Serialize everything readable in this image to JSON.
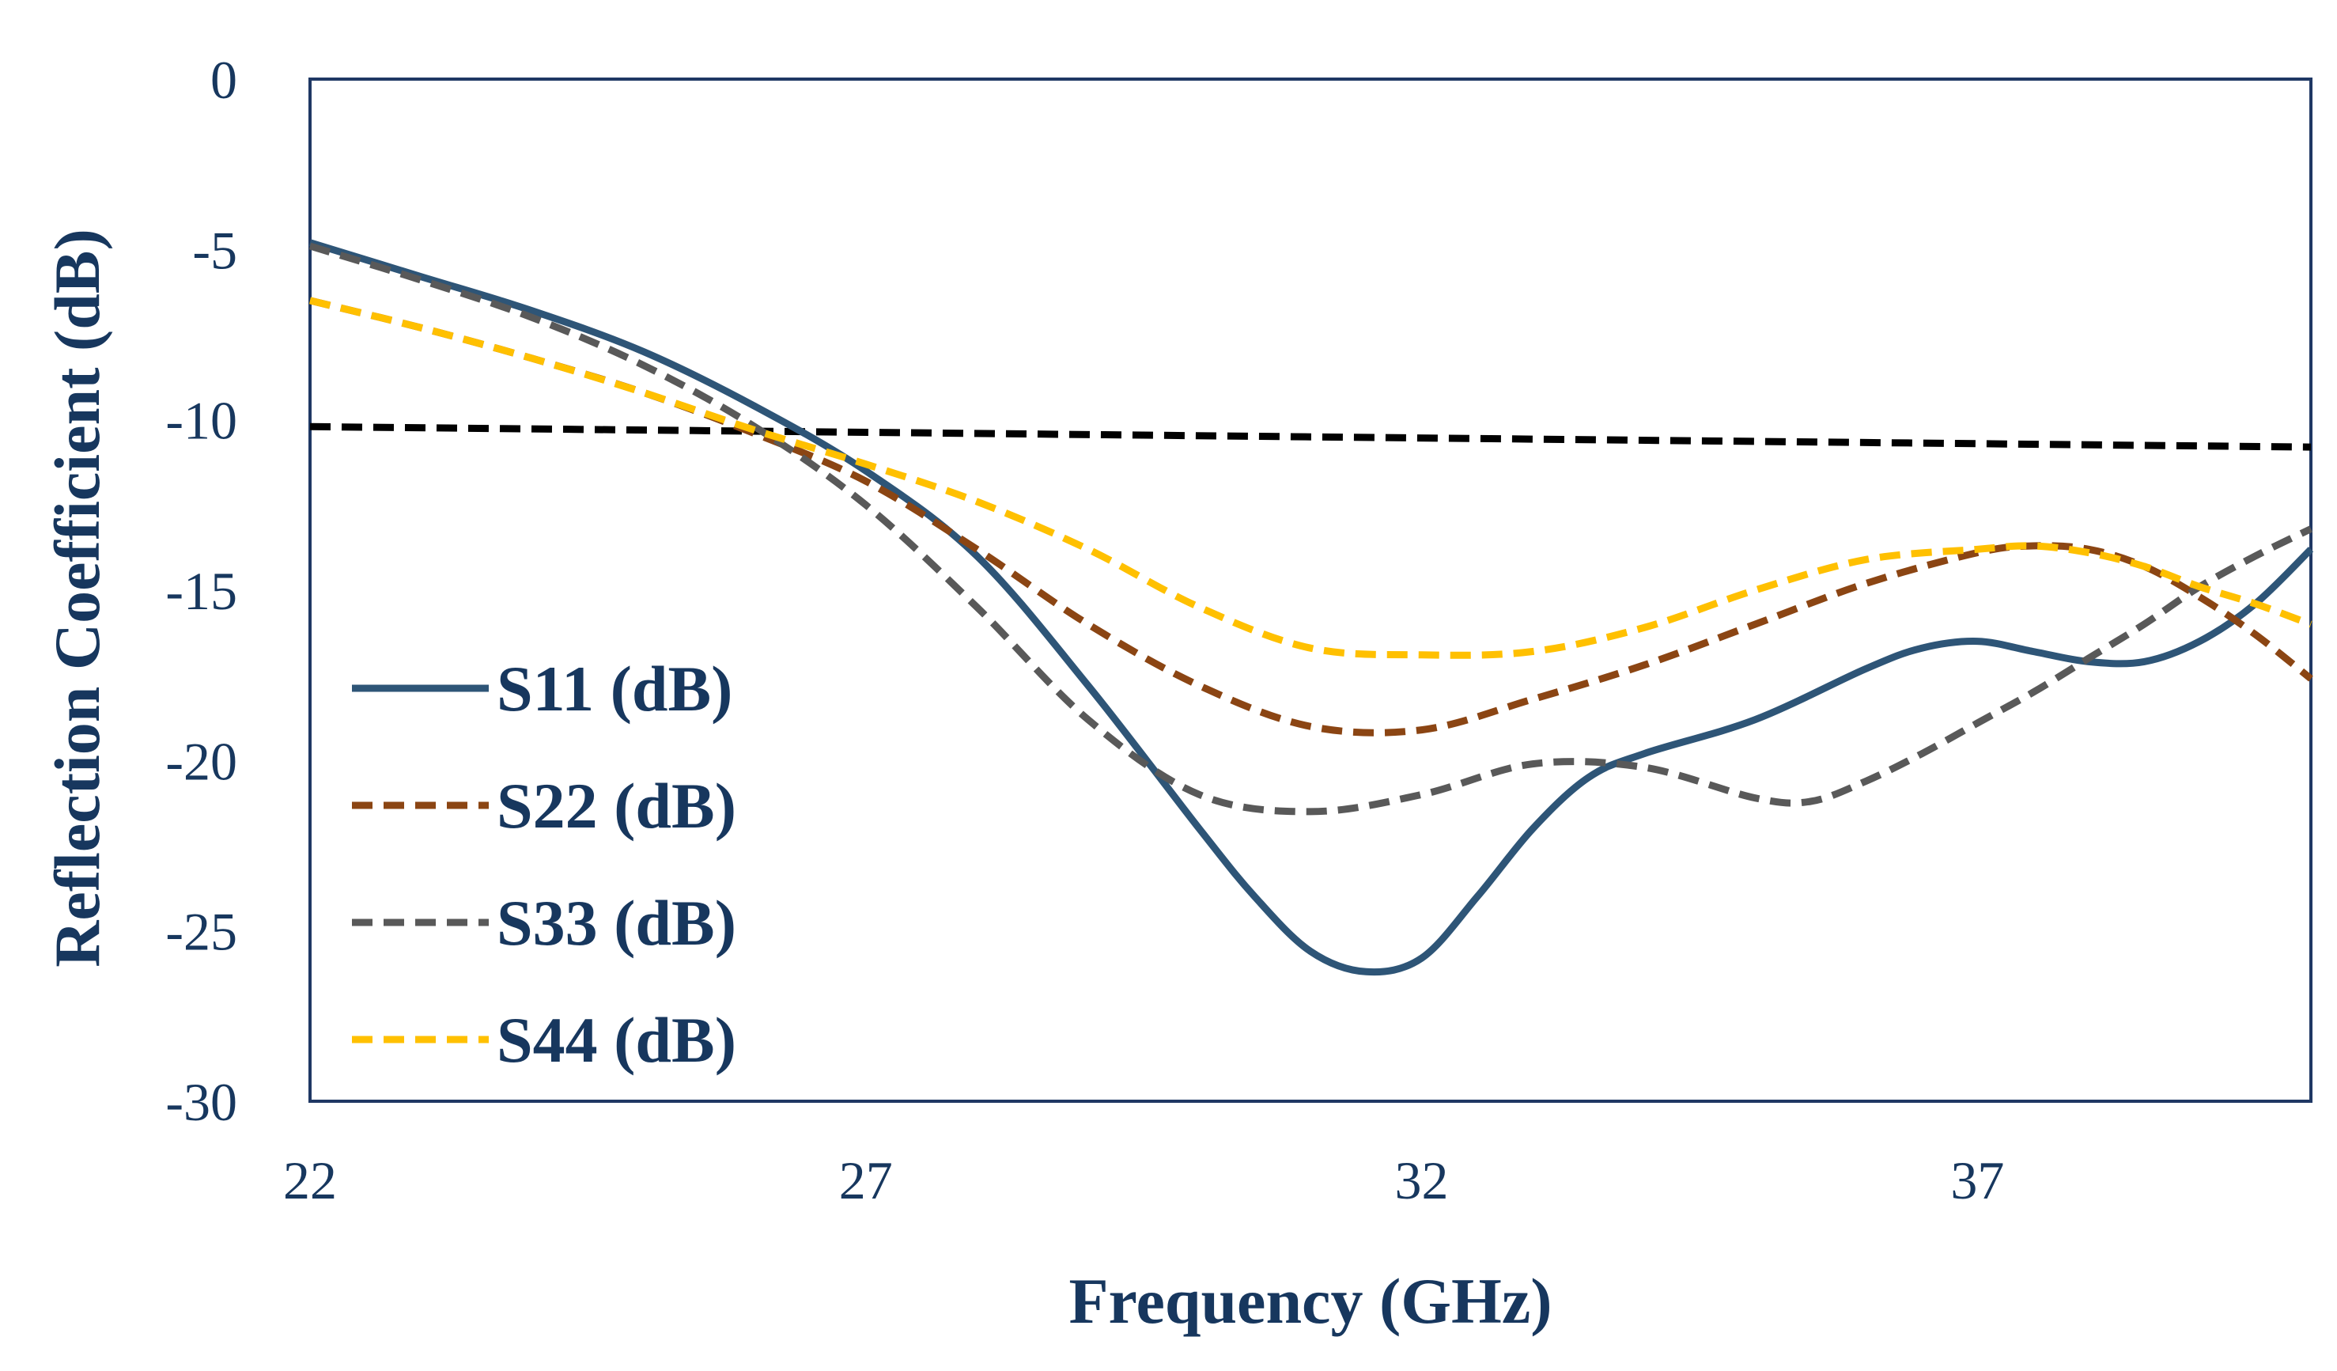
{
  "chart_data": {
    "type": "line",
    "title": "",
    "xlabel": "Frequency (GHz)",
    "ylabel": "Reflection Coefficient (dB)",
    "xlim": [
      22,
      40
    ],
    "ylim": [
      -30,
      0
    ],
    "xticks": [
      22,
      27,
      32,
      37
    ],
    "yticks": [
      0,
      -5,
      -10,
      -15,
      -20,
      -25,
      -30
    ],
    "xtick_labels": [
      "22",
      "27",
      "32",
      "37"
    ],
    "ytick_labels": [
      "0",
      "-5",
      "-10",
      "-15",
      "-20",
      "-25",
      "-30"
    ],
    "grid": false,
    "legend_position": "left",
    "series": [
      {
        "name": "S11 (dB)",
        "color": "#2E5577",
        "style": "solid",
        "x": [
          22,
          23,
          24,
          25,
          26,
          27,
          28,
          29,
          30,
          30.5,
          31,
          31.5,
          32,
          32.5,
          33,
          33.5,
          34,
          35,
          36,
          36.5,
          37,
          37.5,
          38,
          38.5,
          39,
          39.5,
          40
        ],
        "y": [
          -4.8,
          -5.8,
          -6.8,
          -8.0,
          -9.6,
          -11.5,
          -14.0,
          -17.8,
          -22.0,
          -24.0,
          -25.6,
          -26.2,
          -25.8,
          -24.0,
          -22.0,
          -20.5,
          -19.8,
          -18.8,
          -17.3,
          -16.7,
          -16.5,
          -16.8,
          -17.1,
          -17.1,
          -16.5,
          -15.4,
          -13.8
        ]
      },
      {
        "name": "S22 (dB)",
        "color": "#8B4513",
        "style": "dashed",
        "x": [
          22,
          23,
          24,
          25,
          26,
          27,
          28,
          29,
          30,
          31,
          32,
          33,
          34,
          35,
          36,
          37,
          37.5,
          38,
          38.5,
          39,
          39.5,
          40
        ],
        "y": [
          -6.5,
          -7.3,
          -8.2,
          -9.2,
          -10.4,
          -11.8,
          -13.8,
          -16.0,
          -17.8,
          -19.0,
          -19.1,
          -18.2,
          -17.2,
          -16.0,
          -14.8,
          -13.9,
          -13.7,
          -13.8,
          -14.3,
          -15.2,
          -16.3,
          -17.6
        ]
      },
      {
        "name": "S33 (dB)",
        "color": "#595959",
        "style": "dashed",
        "x": [
          22,
          23,
          24,
          25,
          26,
          27,
          28,
          29,
          30,
          31,
          32,
          33,
          34,
          35,
          35.5,
          36,
          36.5,
          37,
          37.5,
          38,
          38.5,
          39,
          39.5,
          40
        ],
        "y": [
          -4.9,
          -5.9,
          -7.0,
          -8.4,
          -10.2,
          -12.5,
          -15.5,
          -18.8,
          -21.0,
          -21.5,
          -21.0,
          -20.1,
          -20.2,
          -21.1,
          -21.2,
          -20.6,
          -19.8,
          -18.9,
          -18.0,
          -17.0,
          -16.0,
          -14.9,
          -14.0,
          -13.2
        ]
      },
      {
        "name": "S44 (dB)",
        "color": "#FFC000",
        "style": "dashed",
        "x": [
          22,
          23,
          24,
          25,
          26,
          27,
          28,
          29,
          30,
          31,
          32,
          33,
          34,
          35,
          36,
          37,
          37.5,
          38,
          38.5,
          39,
          39.5,
          40
        ],
        "y": [
          -6.5,
          -7.3,
          -8.2,
          -9.2,
          -10.3,
          -11.3,
          -12.4,
          -13.8,
          -15.5,
          -16.7,
          -16.9,
          -16.8,
          -16.1,
          -15.0,
          -14.1,
          -13.8,
          -13.7,
          -13.9,
          -14.3,
          -14.9,
          -15.4,
          -16.0
        ]
      }
    ],
    "reference_line": {
      "color": "#000000",
      "style": "dashed",
      "x": [
        22,
        40
      ],
      "y": [
        -10.2,
        -10.8
      ]
    }
  }
}
